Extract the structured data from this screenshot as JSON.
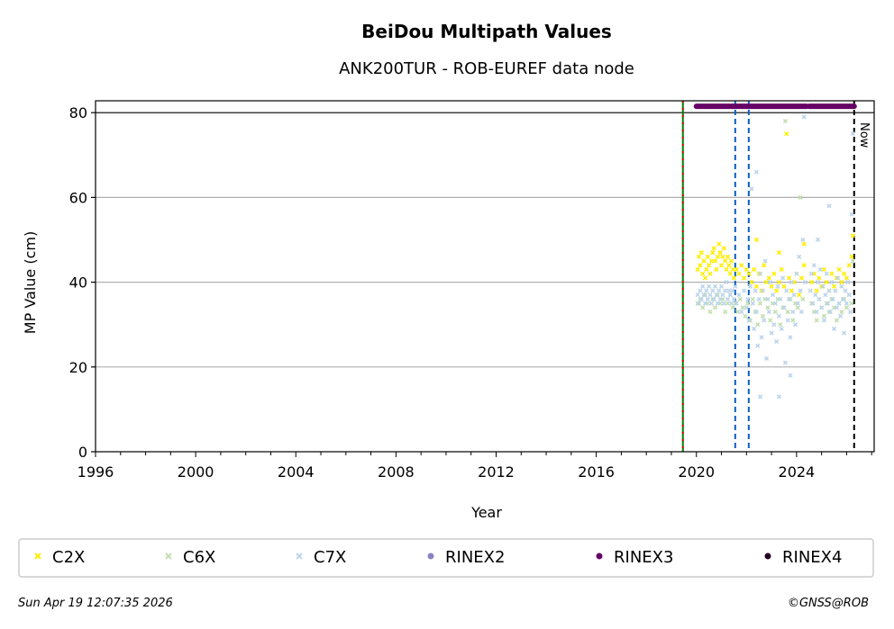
{
  "chart_data": {
    "type": "scatter",
    "title": "BeiDou Multipath Values",
    "subtitle": "ANK200TUR - ROB-EUREF data node",
    "xlabel": "Year",
    "ylabel": "MP Value (cm)",
    "xlim": [
      1996,
      2027.1
    ],
    "ylim": [
      0,
      82.8
    ],
    "xticks": [
      1996,
      2000,
      2004,
      2008,
      2012,
      2016,
      2020,
      2024
    ],
    "yticks": [
      0,
      20,
      40,
      60,
      80
    ],
    "grid": "horizontal",
    "legend_position": "bottom",
    "series": [
      {
        "name": "C2X",
        "color": "#ffee00",
        "marker": "x",
        "points": [
          [
            2020.05,
            43
          ],
          [
            2020.1,
            46
          ],
          [
            2020.15,
            44
          ],
          [
            2020.2,
            47
          ],
          [
            2020.25,
            42
          ],
          [
            2020.3,
            45
          ],
          [
            2020.35,
            41
          ],
          [
            2020.4,
            43
          ],
          [
            2020.45,
            46
          ],
          [
            2020.5,
            44
          ],
          [
            2020.55,
            42
          ],
          [
            2020.6,
            45
          ],
          [
            2020.65,
            47
          ],
          [
            2020.7,
            48
          ],
          [
            2020.75,
            45
          ],
          [
            2020.8,
            43
          ],
          [
            2020.85,
            46
          ],
          [
            2020.9,
            49
          ],
          [
            2020.95,
            47
          ],
          [
            2021.0,
            44
          ],
          [
            2021.05,
            46
          ],
          [
            2021.1,
            48
          ],
          [
            2021.15,
            45
          ],
          [
            2021.2,
            43
          ],
          [
            2021.25,
            46
          ],
          [
            2021.3,
            44
          ],
          [
            2021.35,
            42
          ],
          [
            2021.4,
            45
          ],
          [
            2021.45,
            43
          ],
          [
            2021.5,
            41
          ],
          [
            2021.6,
            43
          ],
          [
            2021.7,
            42
          ],
          [
            2021.8,
            44
          ],
          [
            2021.9,
            41
          ],
          [
            2022.0,
            43
          ],
          [
            2022.1,
            42
          ],
          [
            2022.2,
            40
          ],
          [
            2022.3,
            43
          ],
          [
            2022.4,
            39
          ],
          [
            2022.5,
            42
          ],
          [
            2022.6,
            38
          ],
          [
            2022.7,
            44
          ],
          [
            2022.8,
            40
          ],
          [
            2022.9,
            41
          ],
          [
            2023.0,
            39
          ],
          [
            2023.1,
            42
          ],
          [
            2023.2,
            38
          ],
          [
            2023.3,
            40
          ],
          [
            2023.4,
            43
          ],
          [
            2023.5,
            39
          ],
          [
            2023.6,
            75
          ],
          [
            2023.7,
            41
          ],
          [
            2023.8,
            38
          ],
          [
            2023.9,
            40
          ],
          [
            2024.0,
            42
          ],
          [
            2024.1,
            37
          ],
          [
            2024.2,
            41
          ],
          [
            2024.3,
            44
          ],
          [
            2024.6,
            40
          ],
          [
            2024.7,
            42
          ],
          [
            2024.8,
            38
          ],
          [
            2024.9,
            41
          ],
          [
            2025.0,
            39
          ],
          [
            2025.1,
            43
          ],
          [
            2025.2,
            40
          ],
          [
            2025.3,
            38
          ],
          [
            2025.4,
            42
          ],
          [
            2025.5,
            39
          ],
          [
            2025.6,
            41
          ],
          [
            2025.7,
            43
          ],
          [
            2025.8,
            40
          ],
          [
            2025.9,
            42
          ],
          [
            2026.0,
            41
          ],
          [
            2026.1,
            44
          ],
          [
            2026.2,
            46
          ],
          [
            2026.25,
            51
          ],
          [
            2022.4,
            50
          ],
          [
            2023.3,
            47
          ],
          [
            2024.3,
            49
          ]
        ]
      },
      {
        "name": "C6X",
        "color": "#c2dfad",
        "marker": "x",
        "points": [
          [
            2020.05,
            35
          ],
          [
            2020.15,
            36
          ],
          [
            2020.25,
            34
          ],
          [
            2020.35,
            37
          ],
          [
            2020.45,
            35
          ],
          [
            2020.55,
            33
          ],
          [
            2020.65,
            36
          ],
          [
            2020.75,
            34
          ],
          [
            2020.85,
            37
          ],
          [
            2020.95,
            35
          ],
          [
            2021.05,
            36
          ],
          [
            2021.15,
            33
          ],
          [
            2021.25,
            35
          ],
          [
            2021.35,
            37
          ],
          [
            2021.45,
            34
          ],
          [
            2021.55,
            35
          ],
          [
            2021.65,
            33
          ],
          [
            2021.75,
            36
          ],
          [
            2021.85,
            34
          ],
          [
            2021.95,
            32
          ],
          [
            2022.05,
            35
          ],
          [
            2022.15,
            31
          ],
          [
            2022.25,
            36
          ],
          [
            2022.35,
            33
          ],
          [
            2022.45,
            30
          ],
          [
            2022.55,
            35
          ],
          [
            2022.65,
            32
          ],
          [
            2022.75,
            36
          ],
          [
            2022.85,
            34
          ],
          [
            2022.95,
            31
          ],
          [
            2023.05,
            35
          ],
          [
            2023.15,
            33
          ],
          [
            2023.25,
            36
          ],
          [
            2023.35,
            30
          ],
          [
            2023.45,
            34
          ],
          [
            2023.55,
            78
          ],
          [
            2023.65,
            33
          ],
          [
            2023.75,
            36
          ],
          [
            2023.85,
            31
          ],
          [
            2023.95,
            35
          ],
          [
            2024.05,
            34
          ],
          [
            2024.15,
            60
          ],
          [
            2024.25,
            36
          ],
          [
            2024.6,
            35
          ],
          [
            2024.7,
            33
          ],
          [
            2024.8,
            31
          ],
          [
            2024.9,
            36
          ],
          [
            2025.0,
            34
          ],
          [
            2025.1,
            32
          ],
          [
            2025.2,
            35
          ],
          [
            2025.3,
            33
          ],
          [
            2025.4,
            36
          ],
          [
            2025.5,
            34
          ],
          [
            2025.6,
            31
          ],
          [
            2025.7,
            35
          ],
          [
            2025.8,
            33
          ],
          [
            2025.9,
            36
          ],
          [
            2026.0,
            34
          ],
          [
            2026.1,
            37
          ],
          [
            2026.2,
            35
          ],
          [
            2026.25,
            45
          ]
        ]
      },
      {
        "name": "C7X",
        "color": "#bcd4ec",
        "marker": "x",
        "points": [
          [
            2020.05,
            37
          ],
          [
            2020.1,
            35
          ],
          [
            2020.15,
            38
          ],
          [
            2020.2,
            36
          ],
          [
            2020.25,
            39
          ],
          [
            2020.3,
            37
          ],
          [
            2020.35,
            35
          ],
          [
            2020.4,
            38
          ],
          [
            2020.45,
            36
          ],
          [
            2020.5,
            39
          ],
          [
            2020.55,
            37
          ],
          [
            2020.6,
            35
          ],
          [
            2020.65,
            38
          ],
          [
            2020.7,
            36
          ],
          [
            2020.75,
            39
          ],
          [
            2020.8,
            37
          ],
          [
            2020.85,
            35
          ],
          [
            2020.9,
            38
          ],
          [
            2020.95,
            36
          ],
          [
            2021.0,
            39
          ],
          [
            2021.05,
            37
          ],
          [
            2021.1,
            35
          ],
          [
            2021.15,
            38
          ],
          [
            2021.2,
            40
          ],
          [
            2021.25,
            36
          ],
          [
            2021.3,
            38
          ],
          [
            2021.35,
            37
          ],
          [
            2021.4,
            35
          ],
          [
            2021.45,
            38
          ],
          [
            2021.5,
            36
          ],
          [
            2021.55,
            39
          ],
          [
            2021.6,
            35
          ],
          [
            2021.7,
            37
          ],
          [
            2021.8,
            33
          ],
          [
            2021.9,
            38
          ],
          [
            2022.0,
            34
          ],
          [
            2022.05,
            36
          ],
          [
            2022.1,
            31
          ],
          [
            2022.15,
            39
          ],
          [
            2022.2,
            62
          ],
          [
            2022.25,
            35
          ],
          [
            2022.3,
            29
          ],
          [
            2022.35,
            38
          ],
          [
            2022.4,
            33
          ],
          [
            2022.45,
            25
          ],
          [
            2022.5,
            36
          ],
          [
            2022.55,
            42
          ],
          [
            2022.6,
            27
          ],
          [
            2022.65,
            38
          ],
          [
            2022.7,
            31
          ],
          [
            2022.75,
            45
          ],
          [
            2022.8,
            22
          ],
          [
            2022.85,
            36
          ],
          [
            2022.9,
            33
          ],
          [
            2022.95,
            40
          ],
          [
            2023.0,
            28
          ],
          [
            2023.05,
            37
          ],
          [
            2023.1,
            30
          ],
          [
            2023.15,
            35
          ],
          [
            2023.2,
            26
          ],
          [
            2023.25,
            39
          ],
          [
            2023.3,
            32
          ],
          [
            2023.35,
            36
          ],
          [
            2023.4,
            29
          ],
          [
            2023.45,
            41
          ],
          [
            2023.5,
            34
          ],
          [
            2023.55,
            21
          ],
          [
            2023.6,
            38
          ],
          [
            2023.65,
            31
          ],
          [
            2023.7,
            36
          ],
          [
            2023.75,
            27
          ],
          [
            2023.8,
            40
          ],
          [
            2023.85,
            33
          ],
          [
            2023.9,
            37
          ],
          [
            2023.95,
            30
          ],
          [
            2024.0,
            42
          ],
          [
            2024.05,
            35
          ],
          [
            2024.1,
            46
          ],
          [
            2024.15,
            38
          ],
          [
            2024.2,
            33
          ],
          [
            2024.25,
            50
          ],
          [
            2024.3,
            79
          ],
          [
            2024.35,
            40
          ],
          [
            2022.4,
            66
          ],
          [
            2022.55,
            13
          ],
          [
            2023.3,
            13
          ],
          [
            2023.75,
            18
          ],
          [
            2024.55,
            38
          ],
          [
            2024.6,
            42
          ],
          [
            2024.65,
            35
          ],
          [
            2024.7,
            44
          ],
          [
            2024.75,
            37
          ],
          [
            2024.8,
            33
          ],
          [
            2024.85,
            40
          ],
          [
            2024.9,
            36
          ],
          [
            2024.95,
            43
          ],
          [
            2025.0,
            34
          ],
          [
            2025.05,
            39
          ],
          [
            2025.1,
            31
          ],
          [
            2025.15,
            37
          ],
          [
            2025.2,
            42
          ],
          [
            2025.25,
            35
          ],
          [
            2025.3,
            38
          ],
          [
            2025.35,
            33
          ],
          [
            2025.4,
            40
          ],
          [
            2025.45,
            36
          ],
          [
            2025.5,
            29
          ],
          [
            2025.55,
            38
          ],
          [
            2025.6,
            34
          ],
          [
            2025.65,
            41
          ],
          [
            2025.7,
            35
          ],
          [
            2025.75,
            32
          ],
          [
            2025.8,
            39
          ],
          [
            2025.85,
            36
          ],
          [
            2025.9,
            28
          ],
          [
            2025.95,
            38
          ],
          [
            2026.0,
            35
          ],
          [
            2026.05,
            40
          ],
          [
            2026.1,
            37
          ],
          [
            2026.15,
            33
          ],
          [
            2026.2,
            56
          ],
          [
            2026.25,
            75
          ],
          [
            2025.3,
            58
          ],
          [
            2024.85,
            50
          ]
        ]
      }
    ],
    "rinex_bars": [
      {
        "name": "RINEX2",
        "color": "#8882c4",
        "segments": []
      },
      {
        "name": "RINEX3",
        "color": "#660066",
        "segments": [
          [
            2020.0,
            2024.4
          ],
          [
            2024.5,
            2026.3
          ]
        ],
        "y": 81.5
      },
      {
        "name": "RINEX4",
        "color": "#220022",
        "segments": []
      }
    ],
    "vertical_lines": [
      {
        "x": 2019.46,
        "style": "green-red-dashed"
      },
      {
        "x": 2021.55,
        "style": "blue-dashed"
      },
      {
        "x": 2022.09,
        "style": "blue-dashed"
      },
      {
        "x": 2026.3,
        "style": "black-dashed",
        "label": "Now"
      }
    ],
    "hline": 80
  },
  "legend": [
    "C2X",
    "C6X",
    "C7X",
    "RINEX2",
    "RINEX3",
    "RINEX4"
  ],
  "footer": {
    "timestamp": "Sun Apr 19 12:07:35 2026",
    "copyright": "©GNSS@ROB"
  }
}
